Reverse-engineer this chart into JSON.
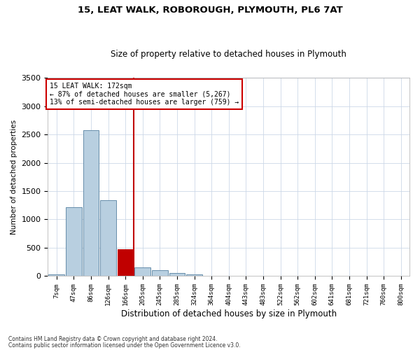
{
  "title": "15, LEAT WALK, ROBOROUGH, PLYMOUTH, PL6 7AT",
  "subtitle": "Size of property relative to detached houses in Plymouth",
  "xlabel": "Distribution of detached houses by size in Plymouth",
  "ylabel": "Number of detached properties",
  "categories": [
    "7sqm",
    "47sqm",
    "86sqm",
    "126sqm",
    "166sqm",
    "205sqm",
    "245sqm",
    "285sqm",
    "324sqm",
    "364sqm",
    "404sqm",
    "443sqm",
    "483sqm",
    "522sqm",
    "562sqm",
    "602sqm",
    "641sqm",
    "681sqm",
    "721sqm",
    "760sqm",
    "800sqm"
  ],
  "values": [
    30,
    1220,
    2580,
    1340,
    470,
    160,
    110,
    55,
    30,
    10,
    5,
    2,
    1,
    0,
    0,
    0,
    0,
    0,
    0,
    0,
    0
  ],
  "highlight_index": 4,
  "highlight_color": "#c00000",
  "bar_color": "#b8cfe0",
  "bar_edge_color": "#5580a0",
  "ylim": [
    0,
    3500
  ],
  "yticks": [
    0,
    500,
    1000,
    1500,
    2000,
    2500,
    3000,
    3500
  ],
  "annotation_title": "15 LEAT WALK: 172sqm",
  "annotation_line1": "← 87% of detached houses are smaller (5,267)",
  "annotation_line2": "13% of semi-detached houses are larger (759) →",
  "footer_line1": "Contains HM Land Registry data © Crown copyright and database right 2024.",
  "footer_line2": "Contains public sector information licensed under the Open Government Licence v3.0.",
  "background_color": "#ffffff",
  "grid_color": "#ccd8e8",
  "vline_x": 4.5
}
